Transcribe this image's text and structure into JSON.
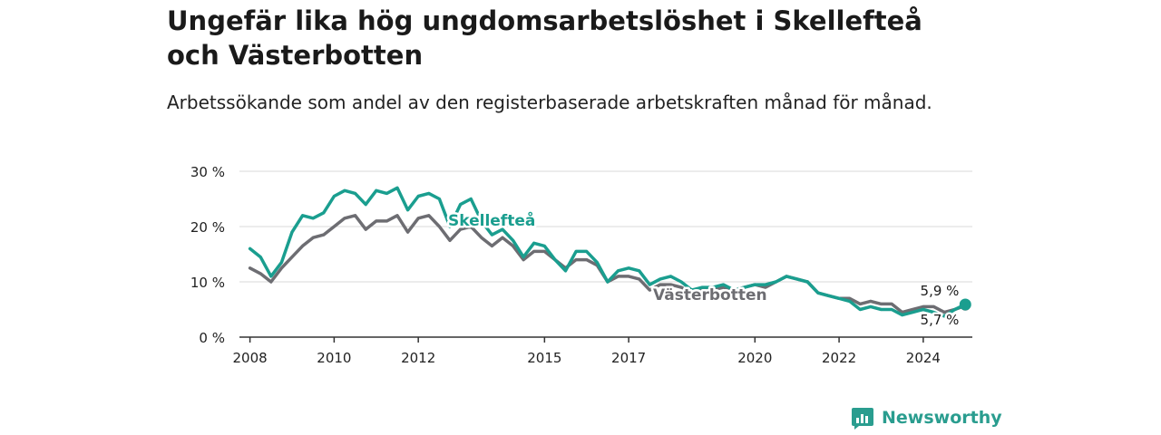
{
  "title": "Ungefär lika hög ungdomsarbetslöshet i Skellefteå och Västerbotten",
  "subtitle": "Arbetssökande som andel av den registerbaserade arbetskraften månad för månad.",
  "brand": {
    "name": "Newsworthy",
    "icon": "newsworthy-logo-icon"
  },
  "colors": {
    "skelleftea": "#1a9e8f",
    "vasterbotten": "#6d6d72",
    "grid": "#d9d9d9",
    "axis": "#333333"
  },
  "chart_data": {
    "type": "line",
    "title": "Ungefär lika hög ungdomsarbetslöshet i Skellefteå och Västerbotten",
    "subtitle": "Arbetssökande som andel av den registerbaserade arbetskraften månad för månad.",
    "xlabel": "",
    "ylabel": "",
    "ylim": [
      0,
      30
    ],
    "yticks": [
      0,
      10,
      20,
      30
    ],
    "ytick_labels": [
      "0 %",
      "10 %",
      "20 %",
      "30 %"
    ],
    "xlim": [
      "2007-10",
      "2025-03"
    ],
    "xticks": [
      "2008",
      "2010",
      "2012",
      "2015",
      "2017",
      "2020",
      "2022",
      "2024"
    ],
    "grid": true,
    "series": [
      {
        "name": "Skellefteå",
        "color": "#1a9e8f",
        "label": "Skellefteå",
        "end_label": "5,9 %",
        "points": [
          [
            "2008-01",
            16.0
          ],
          [
            "2008-04",
            14.5
          ],
          [
            "2008-07",
            11.0
          ],
          [
            "2008-10",
            13.5
          ],
          [
            "2009-01",
            19.0
          ],
          [
            "2009-04",
            22.0
          ],
          [
            "2009-07",
            21.5
          ],
          [
            "2009-10",
            22.5
          ],
          [
            "2010-01",
            25.5
          ],
          [
            "2010-04",
            26.5
          ],
          [
            "2010-07",
            26.0
          ],
          [
            "2010-10",
            24.0
          ],
          [
            "2011-01",
            26.5
          ],
          [
            "2011-04",
            26.0
          ],
          [
            "2011-07",
            27.0
          ],
          [
            "2011-10",
            23.0
          ],
          [
            "2012-01",
            25.5
          ],
          [
            "2012-04",
            26.0
          ],
          [
            "2012-07",
            25.0
          ],
          [
            "2012-10",
            20.0
          ],
          [
            "2013-01",
            24.0
          ],
          [
            "2013-04",
            25.0
          ],
          [
            "2013-07",
            21.0
          ],
          [
            "2013-10",
            18.5
          ],
          [
            "2014-01",
            19.5
          ],
          [
            "2014-04",
            17.5
          ],
          [
            "2014-07",
            14.5
          ],
          [
            "2014-10",
            17.0
          ],
          [
            "2015-01",
            16.5
          ],
          [
            "2015-04",
            14.0
          ],
          [
            "2015-07",
            12.0
          ],
          [
            "2015-10",
            15.5
          ],
          [
            "2016-01",
            15.5
          ],
          [
            "2016-04",
            13.5
          ],
          [
            "2016-07",
            10.0
          ],
          [
            "2016-10",
            12.0
          ],
          [
            "2017-01",
            12.5
          ],
          [
            "2017-04",
            12.0
          ],
          [
            "2017-07",
            9.5
          ],
          [
            "2017-10",
            10.5
          ],
          [
            "2018-01",
            11.0
          ],
          [
            "2018-04",
            10.0
          ],
          [
            "2018-07",
            8.5
          ],
          [
            "2018-10",
            9.0
          ],
          [
            "2019-01",
            9.0
          ],
          [
            "2019-04",
            9.5
          ],
          [
            "2019-07",
            8.5
          ],
          [
            "2019-10",
            9.0
          ],
          [
            "2020-01",
            9.5
          ],
          [
            "2020-04",
            9.5
          ],
          [
            "2020-07",
            10.0
          ],
          [
            "2020-10",
            11.0
          ],
          [
            "2021-01",
            10.5
          ],
          [
            "2021-04",
            10.0
          ],
          [
            "2021-07",
            8.0
          ],
          [
            "2021-10",
            7.5
          ],
          [
            "2022-01",
            7.0
          ],
          [
            "2022-04",
            6.5
          ],
          [
            "2022-07",
            5.0
          ],
          [
            "2022-10",
            5.5
          ],
          [
            "2023-01",
            5.0
          ],
          [
            "2023-04",
            5.0
          ],
          [
            "2023-07",
            4.0
          ],
          [
            "2023-10",
            4.5
          ],
          [
            "2024-01",
            5.0
          ],
          [
            "2024-04",
            4.5
          ],
          [
            "2024-07",
            3.8
          ],
          [
            "2024-10",
            5.0
          ],
          [
            "2025-01",
            5.9
          ]
        ]
      },
      {
        "name": "Västerbotten",
        "color": "#6d6d72",
        "label": "Västerbotten",
        "end_label": "5,7 %",
        "points": [
          [
            "2008-01",
            12.5
          ],
          [
            "2008-04",
            11.5
          ],
          [
            "2008-07",
            10.0
          ],
          [
            "2008-10",
            12.5
          ],
          [
            "2009-01",
            14.5
          ],
          [
            "2009-04",
            16.5
          ],
          [
            "2009-07",
            18.0
          ],
          [
            "2009-10",
            18.5
          ],
          [
            "2010-01",
            20.0
          ],
          [
            "2010-04",
            21.5
          ],
          [
            "2010-07",
            22.0
          ],
          [
            "2010-10",
            19.5
          ],
          [
            "2011-01",
            21.0
          ],
          [
            "2011-04",
            21.0
          ],
          [
            "2011-07",
            22.0
          ],
          [
            "2011-10",
            19.0
          ],
          [
            "2012-01",
            21.5
          ],
          [
            "2012-04",
            22.0
          ],
          [
            "2012-07",
            20.0
          ],
          [
            "2012-10",
            17.5
          ],
          [
            "2013-01",
            19.5
          ],
          [
            "2013-04",
            20.0
          ],
          [
            "2013-07",
            18.0
          ],
          [
            "2013-10",
            16.5
          ],
          [
            "2014-01",
            18.0
          ],
          [
            "2014-04",
            16.5
          ],
          [
            "2014-07",
            14.0
          ],
          [
            "2014-10",
            15.5
          ],
          [
            "2015-01",
            15.5
          ],
          [
            "2015-04",
            14.0
          ],
          [
            "2015-07",
            12.5
          ],
          [
            "2015-10",
            14.0
          ],
          [
            "2016-01",
            14.0
          ],
          [
            "2016-04",
            13.0
          ],
          [
            "2016-07",
            10.0
          ],
          [
            "2016-10",
            11.0
          ],
          [
            "2017-01",
            11.0
          ],
          [
            "2017-04",
            10.5
          ],
          [
            "2017-07",
            8.5
          ],
          [
            "2017-10",
            9.5
          ],
          [
            "2018-01",
            9.5
          ],
          [
            "2018-04",
            9.0
          ],
          [
            "2018-07",
            8.0
          ],
          [
            "2018-10",
            8.5
          ],
          [
            "2019-01",
            8.5
          ],
          [
            "2019-04",
            9.0
          ],
          [
            "2019-07",
            8.5
          ],
          [
            "2019-10",
            9.0
          ],
          [
            "2020-01",
            9.5
          ],
          [
            "2020-04",
            9.0
          ],
          [
            "2020-07",
            10.0
          ],
          [
            "2020-10",
            11.0
          ],
          [
            "2021-01",
            10.5
          ],
          [
            "2021-04",
            10.0
          ],
          [
            "2021-07",
            8.0
          ],
          [
            "2021-10",
            7.5
          ],
          [
            "2022-01",
            7.0
          ],
          [
            "2022-04",
            7.0
          ],
          [
            "2022-07",
            6.0
          ],
          [
            "2022-10",
            6.5
          ],
          [
            "2023-01",
            6.0
          ],
          [
            "2023-04",
            6.0
          ],
          [
            "2023-07",
            4.5
          ],
          [
            "2023-10",
            5.0
          ],
          [
            "2024-01",
            5.5
          ],
          [
            "2024-04",
            5.5
          ],
          [
            "2024-07",
            4.5
          ],
          [
            "2024-10",
            5.0
          ],
          [
            "2025-01",
            5.7
          ]
        ]
      }
    ]
  }
}
